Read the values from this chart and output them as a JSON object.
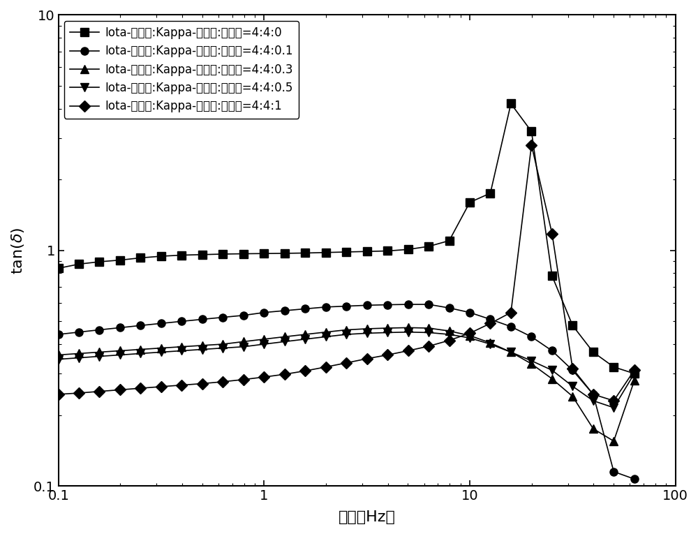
{
  "title": "",
  "xlabel": "频率（Hz）",
  "ylabel_math": "tan(δ)",
  "xlim": [
    0.1,
    100
  ],
  "ylim": [
    0.1,
    10
  ],
  "legend_labels": [
    "Iota-卡拉胶:Kappa-卡拉胶:丙氨酸=4:4:0",
    "Iota-卡拉胶:Kappa-卡拉胶:丙氨酸=4:4:0.1",
    "Iota-卡拉胶:Kappa-卡拉胶:丙氨酸=4:4:0.3",
    "Iota-卡拉胶:Kappa-卡拉胶:丙氨酸=4:4:0.5",
    "Iota-卡拉胶:Kappa-卡拉胶:丙氨酸=4:4:1"
  ],
  "markers": [
    "s",
    "o",
    "^",
    "v",
    "D"
  ],
  "series": {
    "s0": {
      "x": [
        0.1,
        0.126,
        0.158,
        0.2,
        0.251,
        0.316,
        0.398,
        0.501,
        0.631,
        0.794,
        1.0,
        1.259,
        1.585,
        1.995,
        2.512,
        3.162,
        3.981,
        5.012,
        6.31,
        7.943,
        10.0,
        12.589,
        15.849,
        19.953,
        25.119,
        31.623,
        39.811,
        50.119,
        63.096
      ],
      "y": [
        0.84,
        0.875,
        0.895,
        0.91,
        0.93,
        0.945,
        0.955,
        0.96,
        0.965,
        0.968,
        0.97,
        0.972,
        0.975,
        0.98,
        0.985,
        0.99,
        0.995,
        1.01,
        1.04,
        1.1,
        1.6,
        1.75,
        4.2,
        3.2,
        0.78,
        0.48,
        0.37,
        0.32,
        0.3
      ]
    },
    "s1": {
      "x": [
        0.1,
        0.126,
        0.158,
        0.2,
        0.251,
        0.316,
        0.398,
        0.501,
        0.631,
        0.794,
        1.0,
        1.259,
        1.585,
        1.995,
        2.512,
        3.162,
        3.981,
        5.012,
        6.31,
        7.943,
        10.0,
        12.589,
        15.849,
        19.953,
        25.119,
        31.623,
        39.811,
        50.119,
        63.096
      ],
      "y": [
        0.44,
        0.45,
        0.46,
        0.47,
        0.48,
        0.49,
        0.5,
        0.51,
        0.52,
        0.53,
        0.545,
        0.555,
        0.565,
        0.575,
        0.58,
        0.585,
        0.588,
        0.59,
        0.59,
        0.57,
        0.545,
        0.51,
        0.475,
        0.43,
        0.375,
        0.31,
        0.245,
        0.115,
        0.107
      ]
    },
    "s2": {
      "x": [
        0.1,
        0.126,
        0.158,
        0.2,
        0.251,
        0.316,
        0.398,
        0.501,
        0.631,
        0.794,
        1.0,
        1.259,
        1.585,
        1.995,
        2.512,
        3.162,
        3.981,
        5.012,
        6.31,
        7.943,
        10.0,
        12.589,
        15.849,
        19.953,
        25.119,
        31.623,
        39.811,
        50.119,
        63.096
      ],
      "y": [
        0.36,
        0.365,
        0.37,
        0.375,
        0.38,
        0.385,
        0.39,
        0.395,
        0.4,
        0.41,
        0.42,
        0.43,
        0.44,
        0.45,
        0.46,
        0.465,
        0.468,
        0.47,
        0.468,
        0.455,
        0.435,
        0.405,
        0.37,
        0.33,
        0.285,
        0.24,
        0.175,
        0.155,
        0.28
      ]
    },
    "s3": {
      "x": [
        0.1,
        0.126,
        0.158,
        0.2,
        0.251,
        0.316,
        0.398,
        0.501,
        0.631,
        0.794,
        1.0,
        1.259,
        1.585,
        1.995,
        2.512,
        3.162,
        3.981,
        5.012,
        6.31,
        7.943,
        10.0,
        12.589,
        15.849,
        19.953,
        25.119,
        31.623,
        39.811,
        50.119,
        63.096
      ],
      "y": [
        0.345,
        0.35,
        0.355,
        0.36,
        0.365,
        0.37,
        0.375,
        0.38,
        0.385,
        0.39,
        0.4,
        0.41,
        0.42,
        0.43,
        0.44,
        0.445,
        0.448,
        0.45,
        0.448,
        0.44,
        0.425,
        0.4,
        0.37,
        0.34,
        0.31,
        0.265,
        0.23,
        0.215,
        0.3
      ]
    },
    "s4": {
      "x": [
        0.1,
        0.126,
        0.158,
        0.2,
        0.251,
        0.316,
        0.398,
        0.501,
        0.631,
        0.794,
        1.0,
        1.259,
        1.585,
        1.995,
        2.512,
        3.162,
        3.981,
        5.012,
        6.31,
        7.943,
        10.0,
        12.589,
        15.849,
        19.953,
        25.119,
        31.623,
        39.811,
        50.119,
        63.096
      ],
      "y": [
        0.245,
        0.248,
        0.252,
        0.256,
        0.26,
        0.264,
        0.268,
        0.272,
        0.277,
        0.283,
        0.29,
        0.298,
        0.308,
        0.32,
        0.333,
        0.347,
        0.36,
        0.375,
        0.392,
        0.415,
        0.445,
        0.49,
        0.545,
        2.8,
        1.18,
        0.315,
        0.245,
        0.23,
        0.31
      ]
    }
  },
  "line_color": "#000000",
  "marker_size": 8,
  "linewidth": 1.2,
  "background_color": "#ffffff",
  "font_size": 14,
  "legend_font_size": 12
}
